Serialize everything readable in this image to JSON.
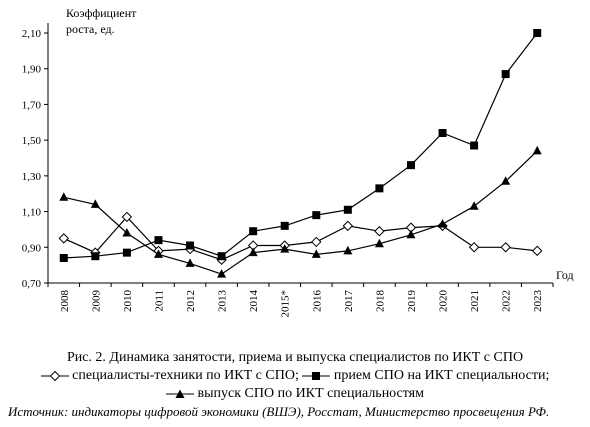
{
  "chart_data": {
    "type": "line",
    "ylabel": "Коэффициент роста, ед.",
    "ylabel_lines": [
      "Коэффициент",
      "роста, ед."
    ],
    "xlabel": "Год",
    "categories": [
      "2008",
      "2009",
      "2010",
      "2011",
      "2012",
      "2013",
      "2014",
      "2015*",
      "2016",
      "2017",
      "2018",
      "2019",
      "2020",
      "2021",
      "2022",
      "2023"
    ],
    "yticks": [
      "0,70",
      "0,90",
      "1,10",
      "1,30",
      "1,50",
      "1,70",
      "1,90",
      "2,10"
    ],
    "ylim": [
      0.7,
      2.1
    ],
    "grid": false,
    "series": [
      {
        "key": "diamond",
        "marker": "diamond-open",
        "values": [
          0.95,
          0.87,
          1.07,
          0.88,
          0.89,
          0.83,
          0.91,
          0.91,
          0.93,
          1.02,
          0.99,
          1.01,
          1.02,
          0.9,
          0.9,
          0.88
        ]
      },
      {
        "key": "square",
        "marker": "square-filled",
        "values": [
          0.84,
          0.85,
          0.87,
          0.94,
          0.91,
          0.85,
          0.99,
          1.02,
          1.08,
          1.11,
          1.23,
          1.36,
          1.54,
          1.47,
          1.87,
          2.1
        ]
      },
      {
        "key": "triangle",
        "marker": "triangle-filled",
        "values": [
          1.18,
          1.14,
          0.98,
          0.86,
          0.81,
          0.75,
          0.87,
          0.89,
          0.86,
          0.88,
          0.92,
          0.97,
          1.03,
          1.13,
          1.27,
          1.44
        ]
      }
    ]
  },
  "caption": {
    "line1": "Рис. 2. Динамика занятости, приема и выпуска специалистов по ИКТ с СПО",
    "line2_a": " специалисты-техники по ИКТ с СПО;",
    "line2_b": " прием СПО на ИКТ специальности;",
    "line3": " выпуск СПО по ИКТ специальностям"
  },
  "source": "Источник: индикаторы цифровой экономики (ВШЭ), Росстат, Министерство просвещения РФ."
}
